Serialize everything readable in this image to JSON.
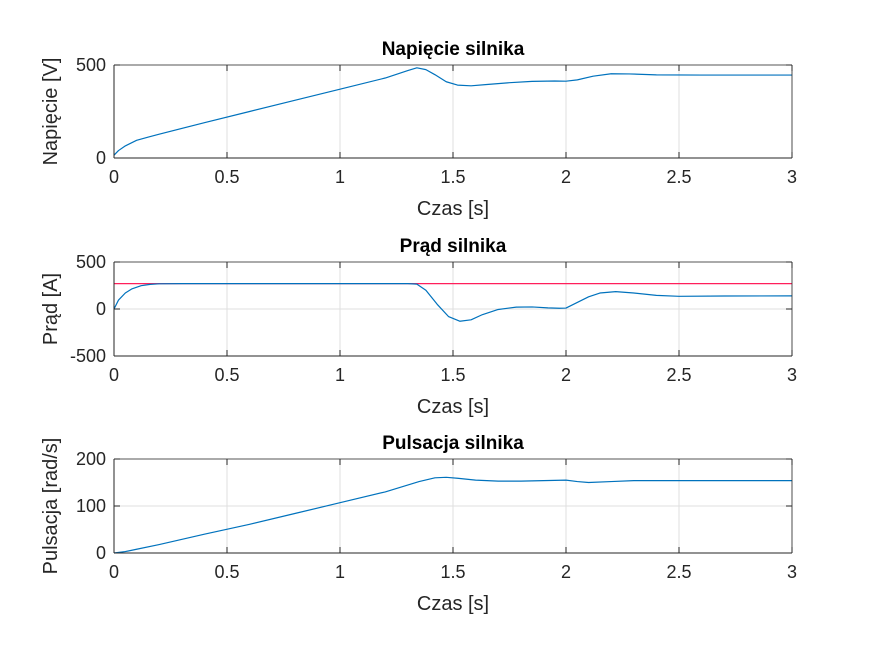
{
  "chart_data": [
    {
      "type": "line",
      "title": "Napięcie silnika",
      "xlabel": "Czas [s]",
      "ylabel": "Napięcie [V]",
      "xlim": [
        0,
        3
      ],
      "ylim": [
        0,
        500
      ],
      "xticks": [
        0,
        0.5,
        1,
        1.5,
        2,
        2.5,
        3
      ],
      "xtick_labels": [
        "0",
        "0.5",
        "1",
        "1.5",
        "2",
        "2.5",
        "3"
      ],
      "yticks": [
        0,
        500
      ],
      "ytick_labels": [
        "0",
        "500"
      ],
      "grid": true,
      "series": [
        {
          "color": "#0072BD",
          "x": [
            0,
            0.02,
            0.05,
            0.1,
            0.15,
            0.2,
            0.4,
            0.6,
            0.8,
            1.0,
            1.2,
            1.3,
            1.34,
            1.38,
            1.42,
            1.47,
            1.52,
            1.58,
            1.65,
            1.75,
            1.85,
            1.95,
            2.0,
            2.05,
            2.12,
            2.2,
            2.28,
            2.4,
            2.6,
            2.8,
            3.0
          ],
          "y": [
            15,
            40,
            65,
            95,
            112,
            128,
            190,
            250,
            310,
            370,
            430,
            470,
            485,
            475,
            448,
            410,
            392,
            388,
            395,
            405,
            412,
            414,
            413,
            420,
            440,
            453,
            452,
            447,
            446,
            446,
            446
          ]
        }
      ]
    },
    {
      "type": "line",
      "title": "Prąd silnika",
      "xlabel": "Czas [s]",
      "ylabel": "Prąd [A]",
      "xlim": [
        0,
        3
      ],
      "ylim": [
        -500,
        500
      ],
      "xticks": [
        0,
        0.5,
        1,
        1.5,
        2,
        2.5,
        3
      ],
      "xtick_labels": [
        "0",
        "0.5",
        "1",
        "1.5",
        "2",
        "2.5",
        "3"
      ],
      "yticks": [
        -500,
        0,
        500
      ],
      "ytick_labels": [
        "-500",
        "0",
        "500"
      ],
      "grid": true,
      "series": [
        {
          "color": "#FF1F5B",
          "x": [
            0,
            3
          ],
          "y": [
            270,
            270
          ]
        },
        {
          "color": "#0072BD",
          "x": [
            0,
            0.02,
            0.05,
            0.08,
            0.12,
            0.16,
            0.2,
            0.3,
            0.6,
            1.0,
            1.3,
            1.34,
            1.38,
            1.43,
            1.48,
            1.53,
            1.58,
            1.63,
            1.7,
            1.78,
            1.85,
            1.92,
            1.97,
            2.0,
            2.05,
            2.1,
            2.15,
            2.22,
            2.3,
            2.4,
            2.5,
            2.7,
            3.0
          ],
          "y": [
            0,
            95,
            170,
            215,
            248,
            262,
            268,
            270,
            270,
            270,
            270,
            265,
            200,
            50,
            -80,
            -130,
            -115,
            -60,
            -5,
            20,
            22,
            12,
            8,
            10,
            70,
            130,
            170,
            185,
            170,
            145,
            135,
            138,
            140
          ]
        }
      ]
    },
    {
      "type": "line",
      "title": "Pulsacja silnika",
      "xlabel": "Czas [s]",
      "ylabel": "Pulsacja [rad/s]",
      "xlim": [
        0,
        3
      ],
      "ylim": [
        0,
        200
      ],
      "xticks": [
        0,
        0.5,
        1,
        1.5,
        2,
        2.5,
        3
      ],
      "xtick_labels": [
        "0",
        "0.5",
        "1",
        "1.5",
        "2",
        "2.5",
        "3"
      ],
      "yticks": [
        0,
        100,
        200
      ],
      "ytick_labels": [
        "0",
        "100",
        "200"
      ],
      "grid": true,
      "series": [
        {
          "color": "#0072BD",
          "x": [
            0,
            0.05,
            0.1,
            0.2,
            0.4,
            0.6,
            0.8,
            1.0,
            1.2,
            1.35,
            1.42,
            1.47,
            1.52,
            1.6,
            1.7,
            1.8,
            1.9,
            2.0,
            2.05,
            2.1,
            2.2,
            2.3,
            2.5,
            2.7,
            3.0
          ],
          "y": [
            0,
            3,
            8,
            18,
            40,
            61,
            84,
            107,
            130,
            152,
            160,
            161,
            159,
            155,
            153,
            153,
            154,
            155,
            152,
            150,
            152,
            154,
            154,
            154,
            154
          ]
        }
      ]
    }
  ]
}
